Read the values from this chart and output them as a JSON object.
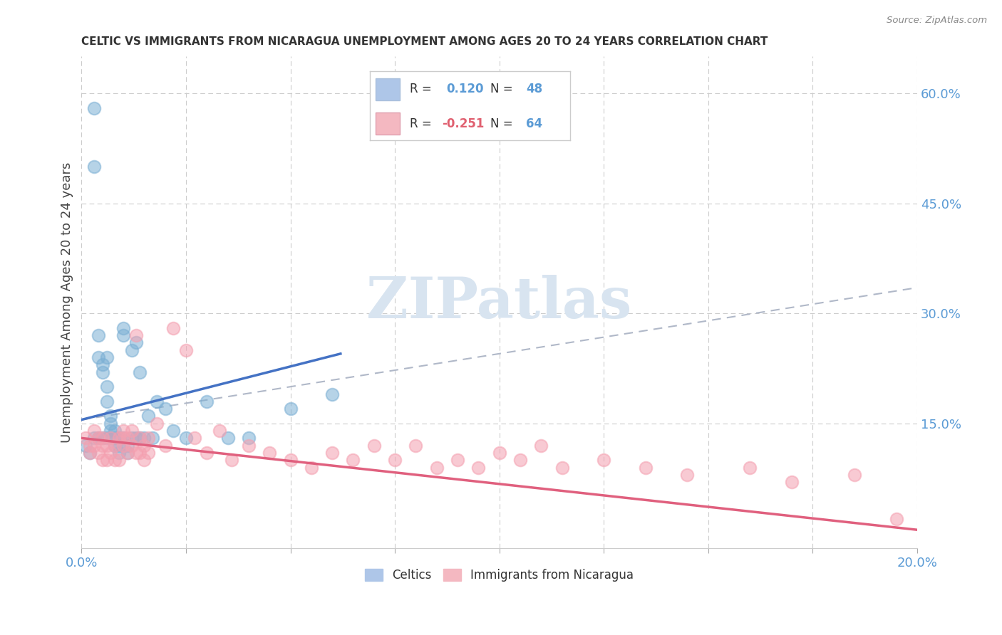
{
  "title": "CELTIC VS IMMIGRANTS FROM NICARAGUA UNEMPLOYMENT AMONG AGES 20 TO 24 YEARS CORRELATION CHART",
  "source": "Source: ZipAtlas.com",
  "ylabel": "Unemployment Among Ages 20 to 24 years",
  "xlim": [
    0.0,
    0.2
  ],
  "ylim": [
    -0.02,
    0.65
  ],
  "xtick_positions": [
    0.0,
    0.025,
    0.05,
    0.075,
    0.1,
    0.125,
    0.15,
    0.175,
    0.2
  ],
  "xticklabels": [
    "0.0%",
    "",
    "",
    "",
    "",
    "",
    "",
    "",
    "20.0%"
  ],
  "right_ytick_positions": [
    0.0,
    0.15,
    0.3,
    0.45,
    0.6
  ],
  "right_yticklabels": [
    "",
    "15.0%",
    "30.0%",
    "45.0%",
    "60.0%"
  ],
  "legend_color1": "#aec6e8",
  "legend_color2": "#f4b8c1",
  "celtics_color": "#7bafd4",
  "nicaragua_color": "#f4a0b0",
  "celtics_line_color": "#4472c4",
  "nicaragua_line_color": "#e0607e",
  "dashed_line_color": "#b0b8c8",
  "watermark_color": "#d8e4f0",
  "background_color": "#ffffff",
  "celtics_x": [
    0.001,
    0.002,
    0.003,
    0.003,
    0.003,
    0.004,
    0.004,
    0.004,
    0.005,
    0.005,
    0.005,
    0.006,
    0.006,
    0.006,
    0.006,
    0.007,
    0.007,
    0.007,
    0.007,
    0.008,
    0.008,
    0.008,
    0.009,
    0.009,
    0.009,
    0.01,
    0.01,
    0.01,
    0.011,
    0.011,
    0.012,
    0.012,
    0.013,
    0.013,
    0.014,
    0.014,
    0.015,
    0.016,
    0.017,
    0.018,
    0.02,
    0.022,
    0.025,
    0.03,
    0.035,
    0.04,
    0.05,
    0.06
  ],
  "celtics_y": [
    0.12,
    0.11,
    0.58,
    0.5,
    0.13,
    0.27,
    0.24,
    0.13,
    0.23,
    0.22,
    0.13,
    0.24,
    0.2,
    0.18,
    0.13,
    0.16,
    0.15,
    0.14,
    0.13,
    0.14,
    0.13,
    0.12,
    0.13,
    0.11,
    0.12,
    0.28,
    0.27,
    0.13,
    0.12,
    0.11,
    0.25,
    0.13,
    0.26,
    0.13,
    0.22,
    0.13,
    0.13,
    0.16,
    0.13,
    0.18,
    0.17,
    0.14,
    0.13,
    0.18,
    0.13,
    0.13,
    0.17,
    0.19
  ],
  "nicaragua_x": [
    0.001,
    0.002,
    0.002,
    0.003,
    0.003,
    0.004,
    0.004,
    0.005,
    0.005,
    0.005,
    0.006,
    0.006,
    0.007,
    0.007,
    0.008,
    0.008,
    0.009,
    0.009,
    0.01,
    0.01,
    0.01,
    0.011,
    0.011,
    0.012,
    0.012,
    0.013,
    0.013,
    0.014,
    0.014,
    0.015,
    0.015,
    0.016,
    0.016,
    0.018,
    0.02,
    0.022,
    0.025,
    0.027,
    0.03,
    0.033,
    0.036,
    0.04,
    0.045,
    0.05,
    0.055,
    0.06,
    0.065,
    0.07,
    0.075,
    0.08,
    0.085,
    0.09,
    0.095,
    0.1,
    0.105,
    0.11,
    0.115,
    0.125,
    0.135,
    0.145,
    0.16,
    0.17,
    0.185,
    0.195
  ],
  "nicaragua_y": [
    0.13,
    0.12,
    0.11,
    0.14,
    0.12,
    0.13,
    0.11,
    0.13,
    0.12,
    0.1,
    0.12,
    0.1,
    0.13,
    0.11,
    0.12,
    0.1,
    0.13,
    0.1,
    0.14,
    0.13,
    0.12,
    0.13,
    0.11,
    0.14,
    0.12,
    0.27,
    0.11,
    0.13,
    0.11,
    0.12,
    0.1,
    0.13,
    0.11,
    0.15,
    0.12,
    0.28,
    0.25,
    0.13,
    0.11,
    0.14,
    0.1,
    0.12,
    0.11,
    0.1,
    0.09,
    0.11,
    0.1,
    0.12,
    0.1,
    0.12,
    0.09,
    0.1,
    0.09,
    0.11,
    0.1,
    0.12,
    0.09,
    0.1,
    0.09,
    0.08,
    0.09,
    0.07,
    0.08,
    0.02
  ],
  "celtics_line_x0": 0.0,
  "celtics_line_y0": 0.155,
  "celtics_line_x1": 0.062,
  "celtics_line_y1": 0.245,
  "nicaragua_line_x0": 0.0,
  "nicaragua_line_y0": 0.13,
  "nicaragua_line_x1": 0.2,
  "nicaragua_line_y1": 0.005,
  "dashed_line_x0": 0.0,
  "dashed_line_y0": 0.155,
  "dashed_line_x1": 0.2,
  "dashed_line_y1": 0.335
}
